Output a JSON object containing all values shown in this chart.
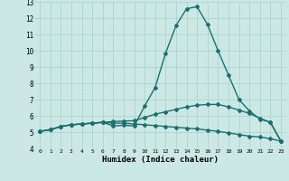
{
  "xlabel": "Humidex (Indice chaleur)",
  "background_color": "#cce8e5",
  "grid_color": "#aacfcc",
  "line_color": "#1a7070",
  "xlim": [
    -0.5,
    23.5
  ],
  "ylim": [
    4,
    13
  ],
  "xtick_labels": [
    "0",
    "1",
    "2",
    "3",
    "4",
    "5",
    "6",
    "7",
    "8",
    "9",
    "10",
    "11",
    "12",
    "13",
    "14",
    "15",
    "16",
    "17",
    "18",
    "19",
    "20",
    "21",
    "22",
    "23"
  ],
  "ytick_labels": [
    "4",
    "5",
    "6",
    "7",
    "8",
    "9",
    "10",
    "11",
    "12",
    "13"
  ],
  "series1_x": [
    0,
    1,
    2,
    3,
    4,
    5,
    6,
    7,
    8,
    9,
    10,
    11,
    12,
    13,
    14,
    15,
    16,
    17,
    18,
    19,
    20,
    21,
    22,
    23
  ],
  "series1_y": [
    5.05,
    5.15,
    5.35,
    5.45,
    5.5,
    5.55,
    5.6,
    5.55,
    5.55,
    5.5,
    5.45,
    5.4,
    5.35,
    5.3,
    5.25,
    5.2,
    5.12,
    5.05,
    4.95,
    4.85,
    4.75,
    4.7,
    4.6,
    4.45
  ],
  "series2_x": [
    0,
    1,
    2,
    3,
    4,
    5,
    6,
    7,
    8,
    9,
    10,
    11,
    12,
    13,
    14,
    15,
    16,
    17,
    18,
    19,
    20,
    21,
    22,
    23
  ],
  "series2_y": [
    5.05,
    5.15,
    5.35,
    5.45,
    5.5,
    5.55,
    5.6,
    5.65,
    5.68,
    5.7,
    5.9,
    6.1,
    6.25,
    6.4,
    6.55,
    6.65,
    6.7,
    6.7,
    6.55,
    6.35,
    6.15,
    5.85,
    5.6,
    4.45
  ],
  "series3_x": [
    0,
    1,
    2,
    3,
    4,
    5,
    6,
    7,
    8,
    9,
    10,
    11,
    12,
    13,
    14,
    15,
    16,
    17,
    18,
    19,
    20,
    21,
    22,
    23
  ],
  "series3_y": [
    5.05,
    5.15,
    5.35,
    5.45,
    5.5,
    5.55,
    5.6,
    5.38,
    5.42,
    5.38,
    6.6,
    7.75,
    9.85,
    11.55,
    12.58,
    12.7,
    11.6,
    10.0,
    8.5,
    7.0,
    6.3,
    5.8,
    5.6,
    4.45
  ],
  "marker": "D",
  "markersize": 2.0,
  "linewidth": 1.0
}
